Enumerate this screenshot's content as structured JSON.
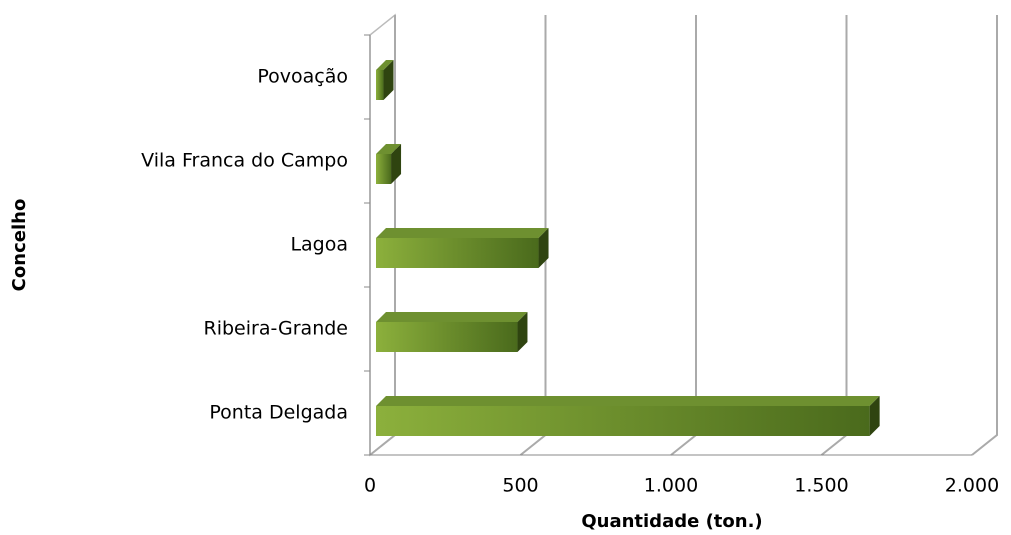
{
  "chart_data": {
    "type": "bar3d_horizontal",
    "categories": [
      "Ponta Delgada",
      "Ribeira-Grande",
      "Lagoa",
      "Vila Franca do Campo",
      "Povoação"
    ],
    "values": [
      1640,
      470,
      540,
      50,
      25
    ],
    "x_label": "Quantidade (ton.)",
    "y_label": "Concelho",
    "xlim": [
      0,
      2000
    ],
    "xticks": [
      0,
      500,
      {
        "value": 1000,
        "label": "1.000"
      },
      {
        "value": 1500,
        "label": "1.500"
      },
      {
        "value": 2000,
        "label": "2.000"
      }
    ],
    "grid": true,
    "color": "#7a9c30"
  }
}
